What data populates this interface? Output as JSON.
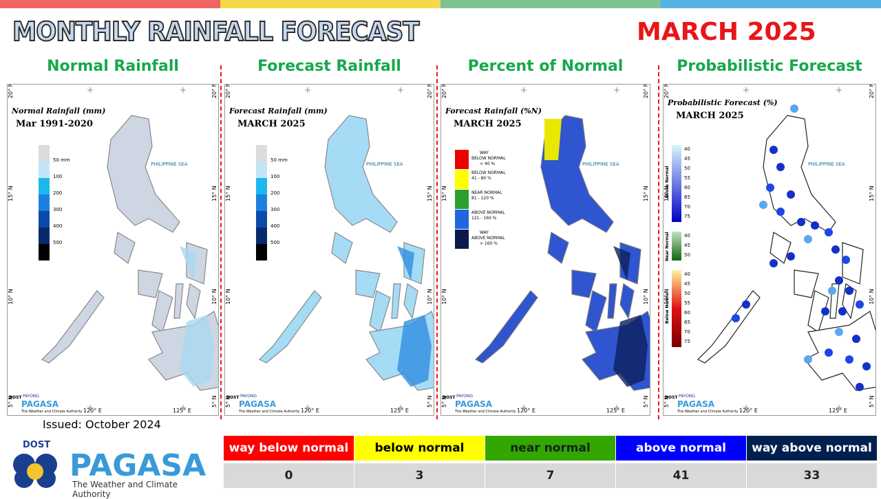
{
  "header": {
    "title": "MONTHLY RAINFALL FORECAST",
    "period": "MARCH 2025"
  },
  "map_axes": {
    "lat": [
      "20° N",
      "15° N",
      "10° N",
      "5° N"
    ],
    "lon": [
      "120° E",
      "125° E"
    ],
    "sea": "PHILIPPINE SEA"
  },
  "map_logo": {
    "agency": "DOST",
    "brand_top": "PAYONG",
    "brand": "PAGASA",
    "tagline": "The Weather and Climate Authority"
  },
  "panels": [
    {
      "title": "Normal Rainfall",
      "map_title": "Normal Rainfall (mm)",
      "map_subtitle": "Mar 1991-2020",
      "legend": [
        "50 mm",
        "100",
        "200",
        "300",
        "400",
        "500"
      ]
    },
    {
      "title": "Forecast Rainfall",
      "map_title": "Forecast Rainfall (mm)",
      "map_subtitle": "MARCH 2025",
      "legend": [
        "50 mm",
        "100",
        "200",
        "300",
        "400",
        "500"
      ]
    },
    {
      "title": "Percent of Normal",
      "map_title": "Forecast Rainfall (%N)",
      "map_subtitle": "MARCH 2025",
      "legend": [
        [
          "WAY",
          "BELOW NORMAL",
          "< 40 %"
        ],
        [
          "BELOW NORMAL",
          "41 - 80 %"
        ],
        [
          "NEAR NORMAL",
          "81 - 120 %"
        ],
        [
          "ABOVE NORMAL",
          "121 - 160 %"
        ],
        [
          "WAY",
          "ABOVE NORMAL",
          "> 160 %"
        ]
      ]
    },
    {
      "title": "Probabilistic Forecast",
      "map_title": "Probabilistic Forecast (%)",
      "map_subtitle": "MARCH 2025",
      "legend": [
        {
          "name": "Above Normal",
          "ticks": [
            "40",
            "45",
            "50",
            "55",
            "60",
            "65",
            "70",
            "75"
          ]
        },
        {
          "name": "Near Normal",
          "ticks": [
            "40",
            "45",
            "50"
          ]
        },
        {
          "name": "Below Normal",
          "ticks": [
            "40",
            "45",
            "50",
            "55",
            "60",
            "65",
            "70",
            "75"
          ]
        }
      ]
    }
  ],
  "issued": "Issued: October 2024",
  "logo": {
    "agency": "DOST",
    "name": "PAGASA",
    "tagline": "The Weather and Climate Authority"
  },
  "table": {
    "headers": [
      "way below normal",
      "below normal",
      "near normal",
      "above normal",
      "way above normal"
    ],
    "counts": [
      "0",
      "3",
      "7",
      "41",
      "33"
    ]
  }
}
